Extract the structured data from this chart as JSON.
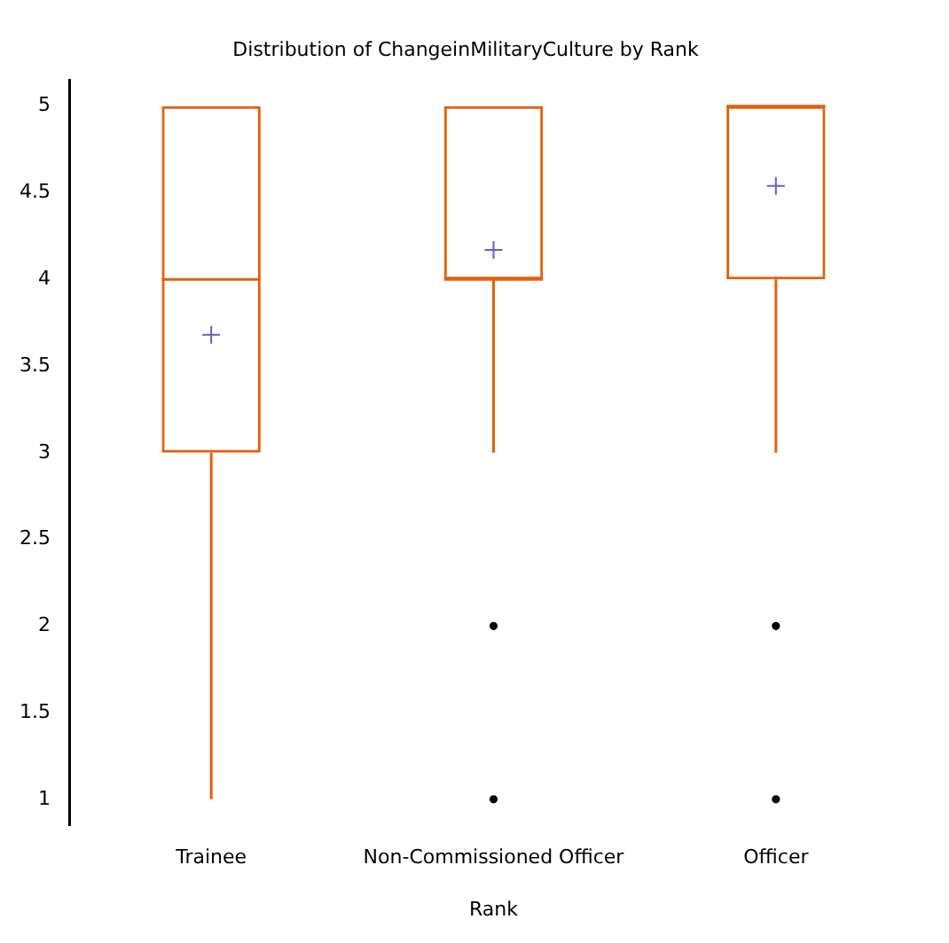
{
  "chart_data": {
    "type": "box",
    "title": "Distribution of ChangeinMilitaryCulture by Rank",
    "xlabel": "Rank",
    "categories": [
      "Trainee",
      "Non-Commissioned Officer",
      "Officer"
    ],
    "series": [
      {
        "type": "box",
        "color": "#e0620d",
        "boxes": [
          {
            "low": 1,
            "q1": 3,
            "median": 4,
            "q3": 5,
            "high": 5,
            "mean": 3.68
          },
          {
            "low": 3,
            "q1": 4,
            "median": 4,
            "q3": 5,
            "high": 5,
            "mean": 4.17,
            "outliers": [
              2,
              1
            ]
          },
          {
            "low": 3,
            "q1": 4,
            "median": 5,
            "q3": 5,
            "high": 5,
            "mean": 4.54,
            "outliers": [
              2,
              1
            ]
          }
        ]
      }
    ],
    "ylim": [
      0.85,
      5.15
    ],
    "yticks": [
      1,
      1.5,
      2,
      2.5,
      3,
      3.5,
      4,
      4.5,
      5
    ],
    "grid": false,
    "legend": false
  }
}
